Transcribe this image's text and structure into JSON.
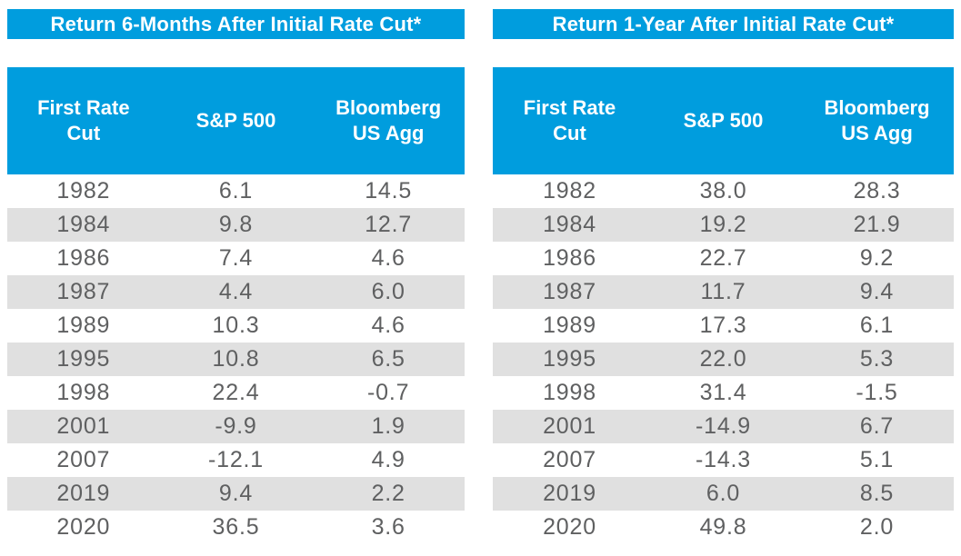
{
  "colors": {
    "accent_blue": "#009DDE",
    "stripe_gray": "#E0E0E0",
    "text_gray": "#5F6061",
    "header_text": "#FFFFFF"
  },
  "chart_data": [
    {
      "type": "table",
      "title": "Return 6-Months After Initial Rate Cut*",
      "columns": [
        "First Rate Cut",
        "S&P 500",
        "Bloomberg US Agg"
      ],
      "rows": [
        [
          "1982",
          "6.1",
          "14.5"
        ],
        [
          "1984",
          "9.8",
          "12.7"
        ],
        [
          "1986",
          "7.4",
          "4.6"
        ],
        [
          "1987",
          "4.4",
          "6.0"
        ],
        [
          "1989",
          "10.3",
          "4.6"
        ],
        [
          "1995",
          "10.8",
          "6.5"
        ],
        [
          "1998",
          "22.4",
          "-0.7"
        ],
        [
          "2001",
          "-9.9",
          "1.9"
        ],
        [
          "2007",
          "-12.1",
          "4.9"
        ],
        [
          "2019",
          "9.4",
          "2.2"
        ],
        [
          "2020",
          "36.5",
          "3.6"
        ]
      ],
      "layout_hints": {
        "striped_rows": "even rows gray",
        "alignment": "center"
      }
    },
    {
      "type": "table",
      "title": "Return 1-Year After Initial Rate Cut*",
      "columns": [
        "First Rate Cut",
        "S&P 500",
        "Bloomberg US Agg"
      ],
      "rows": [
        [
          "1982",
          "38.0",
          "28.3"
        ],
        [
          "1984",
          "19.2",
          "21.9"
        ],
        [
          "1986",
          "22.7",
          "9.2"
        ],
        [
          "1987",
          "11.7",
          "9.4"
        ],
        [
          "1989",
          "17.3",
          "6.1"
        ],
        [
          "1995",
          "22.0",
          "5.3"
        ],
        [
          "1998",
          "31.4",
          "-1.5"
        ],
        [
          "2001",
          "-14.9",
          "6.7"
        ],
        [
          "2007",
          "-14.3",
          "5.1"
        ],
        [
          "2019",
          "6.0",
          "8.5"
        ],
        [
          "2020",
          "49.8",
          "2.0"
        ]
      ],
      "layout_hints": {
        "striped_rows": "even rows gray",
        "alignment": "center"
      }
    }
  ]
}
